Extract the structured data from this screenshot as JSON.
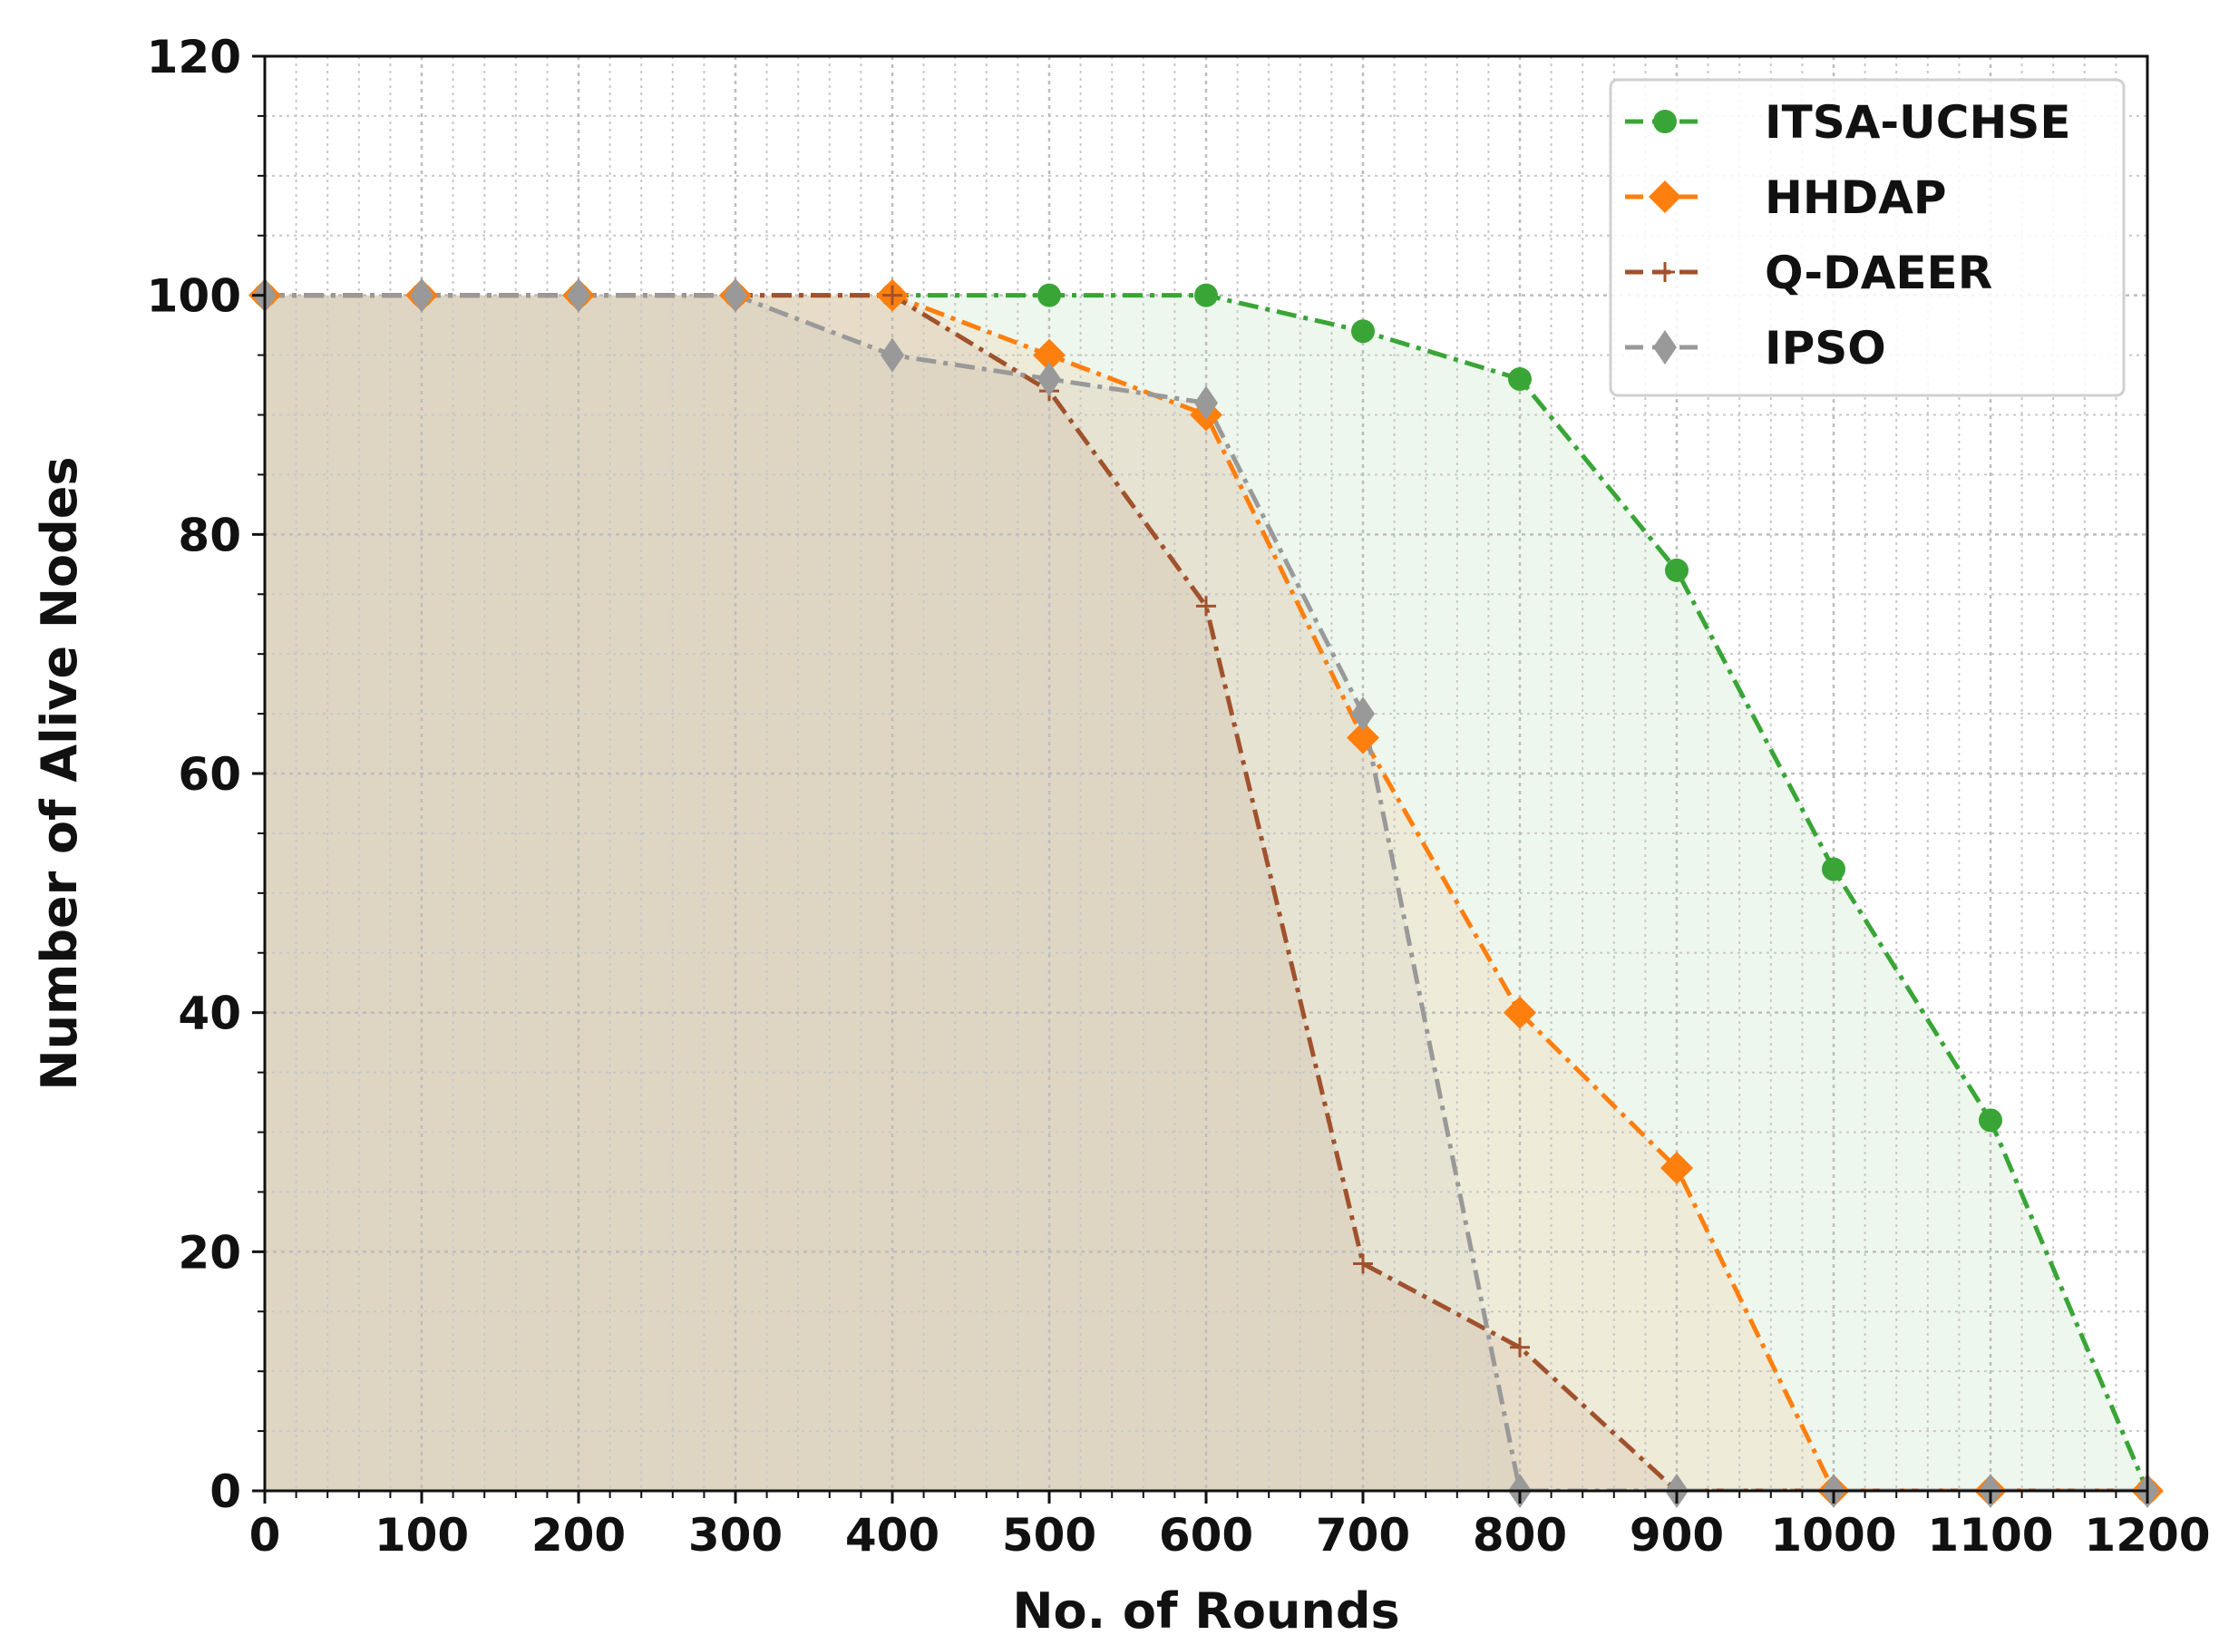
{
  "chart_data": {
    "type": "line",
    "xlabel": "No. of Rounds",
    "ylabel": "Number of Alive Nodes",
    "xlim": [
      0,
      1200
    ],
    "ylim": [
      0,
      120
    ],
    "xticks": [
      0,
      100,
      200,
      300,
      400,
      500,
      600,
      700,
      800,
      900,
      1000,
      1100,
      1200
    ],
    "yticks": [
      0,
      20,
      40,
      60,
      80,
      100,
      120
    ],
    "grid": true,
    "minor_grid": true,
    "filled_area": true,
    "legend_position": "top-right",
    "series": [
      {
        "name": "ITSA-UCHSE",
        "color": "#3aa537",
        "marker": "circle",
        "x": [
          0,
          100,
          200,
          300,
          400,
          500,
          600,
          700,
          800,
          900,
          1000,
          1100,
          1200
        ],
        "values": [
          100,
          100,
          100,
          100,
          100,
          100,
          100,
          97,
          93,
          77,
          52,
          31,
          0
        ]
      },
      {
        "name": "HHDAP",
        "color": "#ff7f0e",
        "marker": "diamond",
        "x": [
          0,
          100,
          200,
          300,
          400,
          500,
          600,
          700,
          800,
          900,
          1000,
          1100,
          1200
        ],
        "values": [
          100,
          100,
          100,
          100,
          100,
          95,
          90,
          63,
          40,
          27,
          0,
          0,
          0
        ]
      },
      {
        "name": "Q-DAEER",
        "color": "#a0522d",
        "marker": "plus",
        "x": [
          0,
          100,
          200,
          300,
          400,
          500,
          600,
          700,
          800,
          900,
          1000,
          1100,
          1200
        ],
        "values": [
          100,
          100,
          100,
          100,
          100,
          92,
          74,
          19,
          12,
          0,
          0,
          0,
          0
        ]
      },
      {
        "name": "IPSO",
        "color": "#999999",
        "marker": "thin-diamond",
        "x": [
          0,
          100,
          200,
          300,
          400,
          500,
          600,
          700,
          800,
          900,
          1000,
          1100,
          1200
        ],
        "values": [
          100,
          100,
          100,
          100,
          95,
          93,
          91,
          65,
          0,
          0,
          0,
          0,
          0
        ]
      }
    ]
  }
}
